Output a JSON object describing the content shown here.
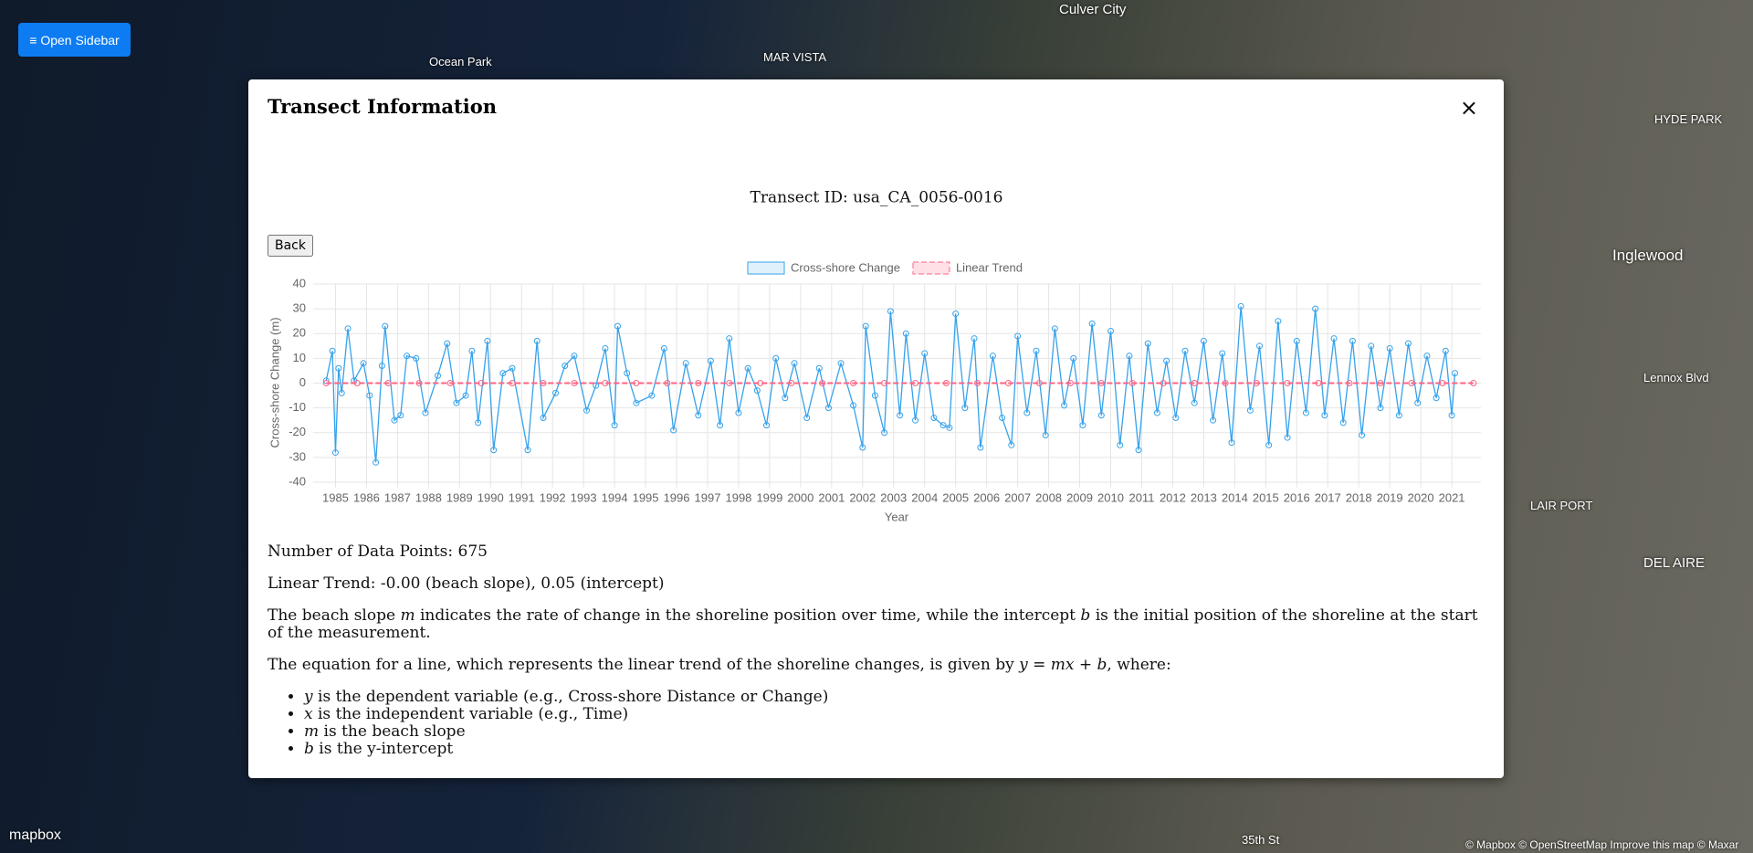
{
  "sidebar_button": "≡ Open Sidebar",
  "map": {
    "labels": [
      "Culver City",
      "Ocean Park",
      "MAR VISTA",
      "HYDE PARK",
      "Inglewood",
      "Lennox Blvd",
      "LAIR PORT",
      "DEL AIRE",
      "35th St"
    ],
    "logo": "mapbox",
    "attribution": "© Mapbox © OpenStreetMap Improve this map © Maxar"
  },
  "modal": {
    "title": "Transect Information",
    "close": "×",
    "back": "Back",
    "points_text": "Number of Data Points: 675",
    "trend_text": "Linear Trend: -0.00 (beach slope), 0.05 (intercept)",
    "explanation": [
      "The beach slope ",
      "m",
      " indicates the rate of change in the shoreline position over time, while the intercept ",
      "b",
      " is the initial position of the shoreline at the start of the measurement."
    ],
    "equation": [
      "The equation for a line, which represents the linear trend of the shoreline changes, is given by ",
      "y = mx + b",
      ", where:"
    ],
    "list": [
      [
        "y",
        " is the dependent variable (e.g., Cross-shore Distance or Change)"
      ],
      [
        "x",
        " is the independent variable (e.g., Time)"
      ],
      [
        "m",
        " is the beach slope"
      ],
      [
        "b",
        " is the y-intercept"
      ]
    ]
  },
  "chart_data": {
    "type": "line",
    "title": "Transect ID: usa_CA_0056-0016",
    "x_label": "Year",
    "y_label": "Cross-shore Change (m)",
    "xlim": [
      1984.28,
      2021.94
    ],
    "xticks": [
      1985,
      1986,
      1987,
      1988,
      1989,
      1990,
      1991,
      1992,
      1993,
      1994,
      1995,
      1996,
      1997,
      1998,
      1999,
      2000,
      2001,
      2002,
      2003,
      2004,
      2005,
      2006,
      2007,
      2008,
      2009,
      2010,
      2011,
      2012,
      2013,
      2014,
      2015,
      2016,
      2017,
      2018,
      2019,
      2020,
      2021
    ],
    "ylim": [
      -40,
      40
    ],
    "yticks": [
      -40,
      -30,
      -20,
      -10,
      0,
      10,
      20,
      30,
      40
    ],
    "grid": true,
    "legend": "top",
    "series": [
      {
        "name": "Cross-shore Change",
        "color": "#36a2eb",
        "x": [
          1984.7,
          1984.9,
          1985.0,
          1985.1,
          1985.2,
          1985.4,
          1985.6,
          1985.9,
          1986.1,
          1986.3,
          1986.5,
          1986.6,
          1986.9,
          1987.1,
          1987.3,
          1987.6,
          1987.9,
          1988.3,
          1988.6,
          1988.9,
          1989.2,
          1989.4,
          1989.6,
          1989.9,
          1990.1,
          1990.4,
          1990.7,
          1991.2,
          1991.5,
          1991.7,
          1992.1,
          1992.4,
          1992.7,
          1993.1,
          1993.4,
          1993.7,
          1994.0,
          1994.1,
          1994.4,
          1994.7,
          1995.2,
          1995.6,
          1995.9,
          1996.3,
          1996.7,
          1997.1,
          1997.4,
          1997.7,
          1998.0,
          1998.3,
          1998.6,
          1998.9,
          1999.2,
          1999.5,
          1999.8,
          2000.2,
          2000.6,
          2000.9,
          2001.3,
          2001.7,
          2002.0,
          2002.1,
          2002.4,
          2002.7,
          2002.9,
          2003.2,
          2003.4,
          2003.7,
          2004.0,
          2004.3,
          2004.6,
          2004.8,
          2005.0,
          2005.3,
          2005.6,
          2005.8,
          2006.2,
          2006.5,
          2006.8,
          2007.0,
          2007.3,
          2007.6,
          2007.9,
          2008.2,
          2008.5,
          2008.8,
          2009.1,
          2009.4,
          2009.7,
          2010.0,
          2010.3,
          2010.6,
          2010.9,
          2011.2,
          2011.5,
          2011.8,
          2012.1,
          2012.4,
          2012.7,
          2013.0,
          2013.3,
          2013.6,
          2013.9,
          2014.2,
          2014.5,
          2014.8,
          2015.1,
          2015.4,
          2015.7,
          2016.0,
          2016.3,
          2016.6,
          2016.9,
          2017.2,
          2017.5,
          2017.8,
          2018.1,
          2018.4,
          2018.7,
          2019.0,
          2019.3,
          2019.6,
          2019.9,
          2020.2,
          2020.5,
          2020.8,
          2021.0,
          2021.1
        ],
        "values": [
          1,
          13,
          -28,
          6,
          -4,
          22,
          1,
          8,
          -5,
          -32,
          7,
          23,
          -15,
          -13,
          11,
          10,
          -12,
          3,
          16,
          -8,
          -5,
          13,
          -16,
          17,
          -27,
          4,
          6,
          -27,
          17,
          -14,
          -4,
          7,
          11,
          -11,
          -1,
          14,
          -17,
          23,
          4,
          -8,
          -5,
          14,
          -19,
          8,
          -13,
          9,
          -17,
          18,
          -12,
          6,
          -3,
          -17,
          10,
          -6,
          8,
          -14,
          6,
          -10,
          8,
          -9,
          -26,
          23,
          -5,
          -20,
          29,
          -13,
          20,
          -15,
          12,
          -14,
          -17,
          -18,
          28,
          -10,
          18,
          -26,
          11,
          -14,
          -25,
          19,
          -12,
          13,
          -21,
          22,
          -9,
          10,
          -17,
          24,
          -13,
          21,
          -25,
          11,
          -27,
          16,
          -12,
          9,
          -14,
          13,
          -8,
          17,
          -15,
          12,
          -24,
          31,
          -11,
          15,
          -25,
          25,
          -22,
          17,
          -12,
          30,
          -13,
          18,
          -16,
          17,
          -21,
          15,
          -10,
          14,
          -13,
          16,
          -8,
          11,
          -6,
          13,
          -13,
          4
        ]
      },
      {
        "name": "Linear Trend",
        "color": "#ff6384",
        "x": [
          1984.7,
          1985.7,
          1986.7,
          1987.7,
          1988.7,
          1989.7,
          1990.7,
          1991.7,
          1992.7,
          1993.7,
          1994.7,
          1995.7,
          1996.7,
          1997.7,
          1998.7,
          1999.7,
          2000.7,
          2001.7,
          2002.7,
          2003.7,
          2004.7,
          2005.7,
          2006.7,
          2007.7,
          2008.7,
          2009.7,
          2010.7,
          2011.7,
          2012.7,
          2013.7,
          2014.7,
          2015.7,
          2016.7,
          2017.7,
          2018.7,
          2019.7,
          2020.7,
          2021.7
        ],
        "values": [
          0,
          0,
          0,
          0,
          0,
          0,
          0,
          0,
          0,
          0,
          0,
          0,
          0,
          0,
          0,
          0,
          0,
          0,
          0,
          0,
          0,
          0,
          0,
          0,
          0,
          0,
          0,
          0,
          0,
          0,
          0,
          0,
          0,
          0,
          0,
          0,
          0,
          0
        ]
      }
    ]
  }
}
